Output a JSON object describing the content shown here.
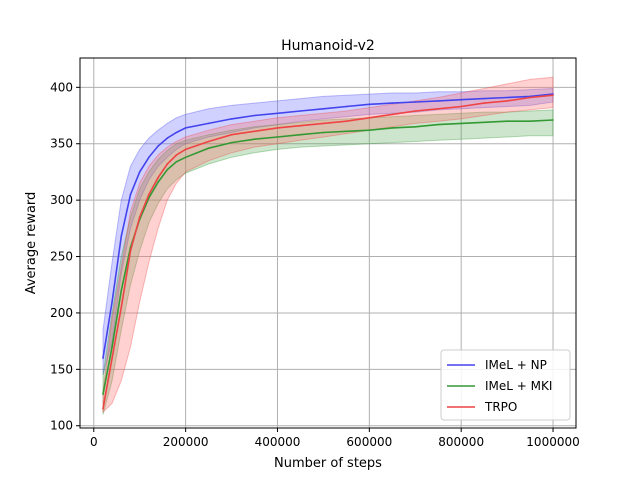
{
  "chart_data": {
    "type": "line",
    "title": "Humanoid-v2",
    "xlabel": "Number of steps",
    "ylabel": "Average reward",
    "xlim": [
      -30000,
      1050000
    ],
    "ylim": [
      98,
      426
    ],
    "xticks": [
      0,
      200000,
      400000,
      600000,
      800000,
      1000000
    ],
    "xtick_labels": [
      "0",
      "200000",
      "400000",
      "600000",
      "800000",
      "1000000"
    ],
    "yticks": [
      100,
      150,
      200,
      250,
      300,
      350,
      400
    ],
    "ytick_labels": [
      "100",
      "150",
      "200",
      "250",
      "300",
      "350",
      "400"
    ],
    "grid": true,
    "legend_position": "lower-right",
    "x": [
      20000,
      40000,
      60000,
      80000,
      100000,
      120000,
      140000,
      160000,
      180000,
      200000,
      250000,
      300000,
      350000,
      400000,
      450000,
      500000,
      550000,
      600000,
      650000,
      700000,
      750000,
      800000,
      850000,
      900000,
      950000,
      1000000
    ],
    "series": [
      {
        "name": "IMeL + NP",
        "color": "#4444ee",
        "band_color": "#6666ff",
        "values": [
          160,
          210,
          268,
          305,
          325,
          338,
          348,
          355,
          360,
          364,
          368,
          372,
          375,
          377,
          379,
          381,
          383,
          385,
          386,
          387,
          388,
          389,
          390,
          391,
          392,
          394
        ],
        "upper": [
          185,
          245,
          300,
          330,
          345,
          355,
          362,
          368,
          373,
          376,
          381,
          384,
          386,
          388,
          390,
          392,
          393,
          394,
          395,
          395,
          396,
          396,
          397,
          397,
          398,
          399
        ],
        "lower": [
          145,
          175,
          235,
          275,
          300,
          318,
          330,
          338,
          345,
          350,
          356,
          360,
          364,
          367,
          370,
          372,
          374,
          376,
          377,
          378,
          380,
          381,
          382,
          383,
          384,
          387
        ]
      },
      {
        "name": "IMeL + MKI",
        "color": "#339933",
        "band_color": "#55aa55",
        "values": [
          128,
          170,
          220,
          258,
          283,
          302,
          316,
          327,
          334,
          338,
          346,
          351,
          354,
          356,
          358,
          360,
          361,
          362,
          364,
          365,
          367,
          368,
          369,
          370,
          370,
          371
        ],
        "upper": [
          145,
          200,
          250,
          285,
          310,
          325,
          336,
          344,
          350,
          353,
          358,
          362,
          365,
          367,
          369,
          371,
          372,
          373,
          374,
          375,
          376,
          377,
          378,
          378,
          379,
          380
        ],
        "lower": [
          110,
          140,
          185,
          225,
          255,
          280,
          297,
          310,
          318,
          324,
          332,
          338,
          342,
          345,
          347,
          348,
          349,
          350,
          351,
          352,
          353,
          354,
          355,
          356,
          357,
          357
        ]
      },
      {
        "name": "TRPO",
        "color": "#ee4444",
        "band_color": "#ff6666",
        "values": [
          115,
          160,
          205,
          255,
          285,
          305,
          320,
          332,
          340,
          345,
          352,
          358,
          361,
          364,
          366,
          368,
          370,
          373,
          376,
          379,
          381,
          383,
          386,
          388,
          391,
          393
        ],
        "upper": [
          130,
          195,
          240,
          290,
          315,
          330,
          340,
          347,
          352,
          356,
          362,
          367,
          370,
          373,
          375,
          377,
          379,
          382,
          385,
          388,
          391,
          395,
          399,
          403,
          407,
          409
        ],
        "lower": [
          112,
          120,
          140,
          170,
          210,
          245,
          275,
          300,
          315,
          325,
          335,
          342,
          347,
          350,
          353,
          356,
          359,
          362,
          365,
          368,
          370,
          372,
          375,
          378,
          380,
          382
        ]
      }
    ]
  }
}
